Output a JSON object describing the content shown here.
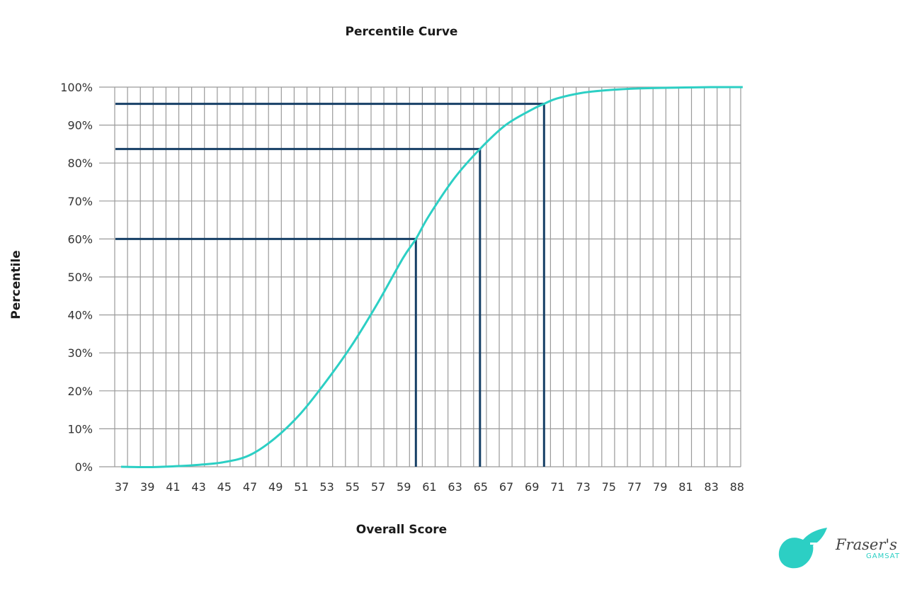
{
  "chart_data": {
    "type": "line",
    "title": "Percentile Curve",
    "xlabel": "Overall Score",
    "ylabel": "Percentile",
    "x_tick_labels": [
      "37",
      "39",
      "41",
      "43",
      "45",
      "47",
      "49",
      "51",
      "53",
      "55",
      "57",
      "59",
      "61",
      "63",
      "65",
      "67",
      "69",
      "71",
      "73",
      "75",
      "77",
      "79",
      "81",
      "83",
      "88"
    ],
    "y_ticks": [
      0,
      10,
      20,
      30,
      40,
      50,
      60,
      70,
      80,
      90,
      100
    ],
    "y_tick_suffix": "%",
    "ylim": [
      0,
      100
    ],
    "grid": true,
    "series": [
      {
        "color": "#2ccfc4",
        "points": [
          [
            37,
            0
          ],
          [
            39,
            -0.1
          ],
          [
            41,
            0.1
          ],
          [
            43,
            0.5
          ],
          [
            45,
            1.2
          ],
          [
            47,
            3
          ],
          [
            49,
            7.5
          ],
          [
            51,
            14
          ],
          [
            53,
            22.5
          ],
          [
            55,
            32
          ],
          [
            57,
            43
          ],
          [
            59,
            55
          ],
          [
            60,
            60
          ],
          [
            61,
            66
          ],
          [
            63,
            76
          ],
          [
            65,
            83.7
          ],
          [
            67,
            90
          ],
          [
            69,
            94
          ],
          [
            70,
            95.6
          ],
          [
            71,
            97
          ],
          [
            73,
            98.5
          ],
          [
            75,
            99.2
          ],
          [
            77,
            99.6
          ],
          [
            79,
            99.8
          ],
          [
            81,
            99.9
          ],
          [
            83,
            100
          ],
          [
            85.5,
            100
          ]
        ]
      }
    ],
    "reference_lines": [
      {
        "score": 60,
        "percentile": 60,
        "color": "#163f66"
      },
      {
        "score": 65,
        "percentile": 83.7,
        "color": "#163f66"
      },
      {
        "score": 70,
        "percentile": 95.6,
        "color": "#163f66"
      }
    ]
  },
  "logo": {
    "name": "Fraser's",
    "sub": "GAMSAT",
    "color": "#2ccfc4"
  }
}
